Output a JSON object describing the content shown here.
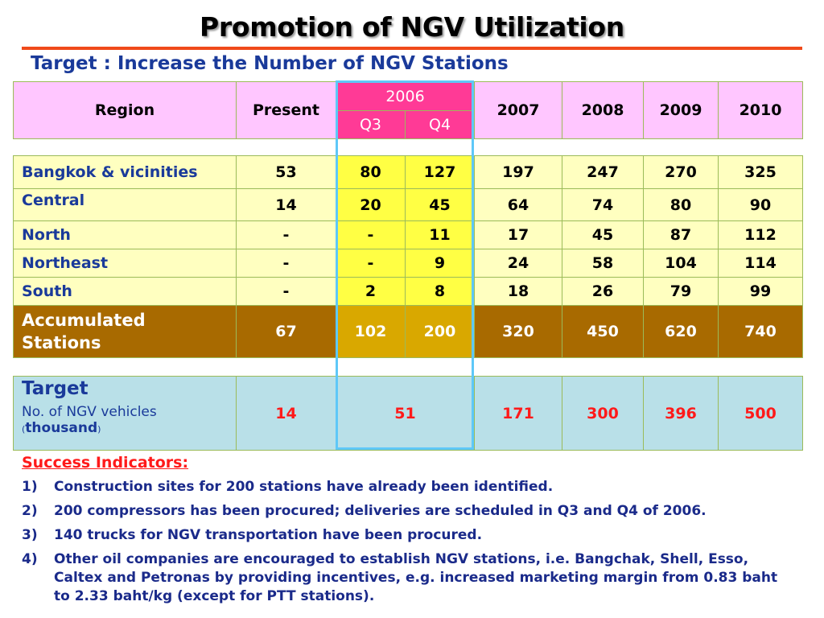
{
  "title": "Promotion of NGV Utilization",
  "subtitle": "Target : Increase the Number of NGV Stations",
  "header": {
    "region": "Region",
    "present": "Present",
    "year_2006": "2006",
    "q3": "Q3",
    "q4": "Q4",
    "y2007": "2007",
    "y2008": "2008",
    "y2009": "2009",
    "y2010": "2010"
  },
  "rows": [
    {
      "region": "Bangkok & vicinities",
      "present": "53",
      "q3": "80",
      "q4": "127",
      "y2007": "197",
      "y2008": "247",
      "y2009": "270",
      "y2010": "325"
    },
    {
      "region": "Central",
      "present": "14",
      "q3": "20",
      "q4": "45",
      "y2007": "64",
      "y2008": "74",
      "y2009": "80",
      "y2010": "90"
    },
    {
      "region": "North",
      "present": "-",
      "q3": "-",
      "q4": "11",
      "y2007": "17",
      "y2008": "45",
      "y2009": "87",
      "y2010": "112"
    },
    {
      "region": "Northeast",
      "present": "-",
      "q3": "-",
      "q4": "9",
      "y2007": "24",
      "y2008": "58",
      "y2009": "104",
      "y2010": "114"
    },
    {
      "region": "South",
      "present": "-",
      "q3": "2",
      "q4": "8",
      "y2007": "18",
      "y2008": "26",
      "y2009": "79",
      "y2010": "99"
    }
  ],
  "accumulated": {
    "label_line1": "Accumulated",
    "label_line2": "Stations",
    "present": "67",
    "q3": "102",
    "q4": "200",
    "y2007": "320",
    "y2008": "450",
    "y2009": "620",
    "y2010": "740"
  },
  "target": {
    "label": "Target",
    "sub_line1": "No. of NGV vehicles",
    "paren_open": "(",
    "sub_line2": "thousand",
    "paren_close": ")",
    "present": "14",
    "y2006": "51",
    "y2007": "171",
    "y2008": "300",
    "y2009": "396",
    "y2010": "500"
  },
  "success": {
    "heading": "Success Indicators:",
    "items": [
      {
        "num": "1)",
        "text": "Construction sites for 200 stations have already been identified."
      },
      {
        "num": "2)",
        "text": "200 compressors has been procured; deliveries are scheduled in Q3 and Q4 of 2006."
      },
      {
        "num": "3)",
        "text": "140 trucks for NGV transportation have been procured."
      },
      {
        "num": "4)",
        "text": "Other oil companies are encouraged to establish NGV stations, i.e. Bangchak, Shell, Esso, Caltex and Petronas by providing incentives, e.g. increased marketing margin from 0.83 baht to 2.33 baht/kg (except for PTT stations)."
      }
    ]
  },
  "colors": {
    "title_rule": "#f04a1a",
    "header_pink": "#ffc6ff",
    "header_magenta": "#ff3a96",
    "row_yellow": "#ffffc0",
    "highlight_yellow": "#ffff44",
    "accumulated_brown": "#a86a00",
    "target_blue": "#b9e0e8",
    "highlight_border": "#5ec8f8",
    "text_blue": "#1a3a9a",
    "text_red": "#ff1a1a"
  }
}
